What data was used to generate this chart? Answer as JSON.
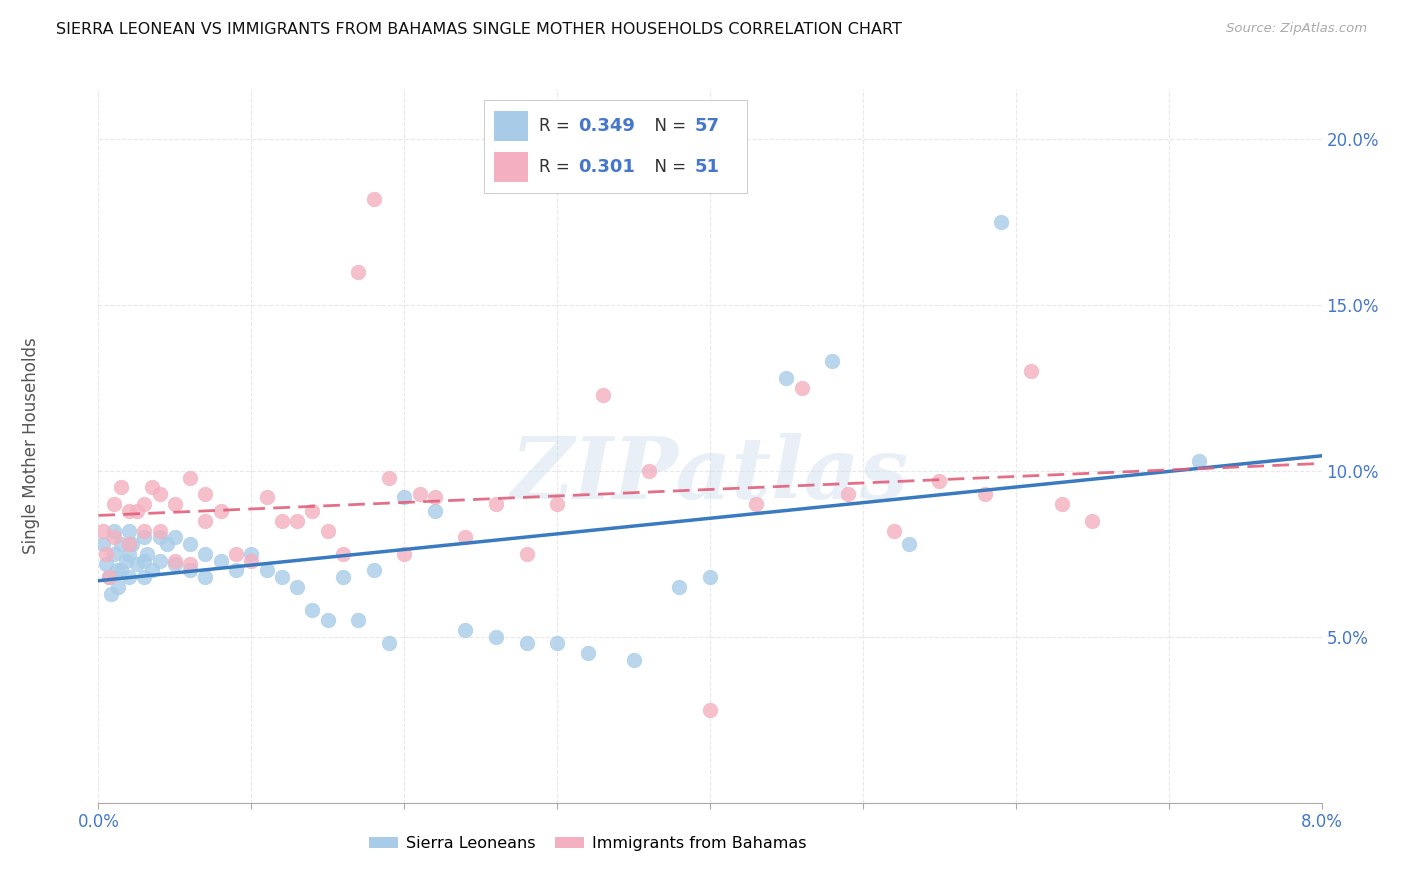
{
  "title": "SIERRA LEONEAN VS IMMIGRANTS FROM BAHAMAS SINGLE MOTHER HOUSEHOLDS CORRELATION CHART",
  "source": "Source: ZipAtlas.com",
  "ylabel": "Single Mother Households",
  "xlim": [
    0.0,
    0.08
  ],
  "ylim": [
    0.0,
    0.215
  ],
  "blue_R": 0.349,
  "blue_N": 57,
  "pink_R": 0.301,
  "pink_N": 51,
  "blue_color": "#a8cce8",
  "pink_color": "#f4b0c0",
  "blue_line_color": "#3a7bbf",
  "pink_line_color": "#e0607a",
  "watermark": "ZIPatlas",
  "legend_label_blue": "Sierra Leoneans",
  "legend_label_pink": "Immigrants from Bahamas",
  "blue_x": [
    0.0003,
    0.0005,
    0.0007,
    0.0008,
    0.001,
    0.001,
    0.0012,
    0.0013,
    0.0015,
    0.0015,
    0.0018,
    0.002,
    0.002,
    0.002,
    0.0022,
    0.0025,
    0.003,
    0.003,
    0.003,
    0.0032,
    0.0035,
    0.004,
    0.004,
    0.0045,
    0.005,
    0.005,
    0.006,
    0.006,
    0.007,
    0.007,
    0.008,
    0.009,
    0.01,
    0.011,
    0.012,
    0.013,
    0.014,
    0.015,
    0.016,
    0.017,
    0.018,
    0.019,
    0.02,
    0.022,
    0.024,
    0.026,
    0.028,
    0.03,
    0.032,
    0.035,
    0.038,
    0.04,
    0.045,
    0.048,
    0.053,
    0.059,
    0.072
  ],
  "blue_y": [
    0.078,
    0.072,
    0.068,
    0.063,
    0.082,
    0.075,
    0.07,
    0.065,
    0.078,
    0.07,
    0.073,
    0.082,
    0.075,
    0.068,
    0.078,
    0.072,
    0.08,
    0.073,
    0.068,
    0.075,
    0.07,
    0.08,
    0.073,
    0.078,
    0.08,
    0.072,
    0.078,
    0.07,
    0.075,
    0.068,
    0.073,
    0.07,
    0.075,
    0.07,
    0.068,
    0.065,
    0.058,
    0.055,
    0.068,
    0.055,
    0.07,
    0.048,
    0.092,
    0.088,
    0.052,
    0.05,
    0.048,
    0.048,
    0.045,
    0.043,
    0.065,
    0.068,
    0.128,
    0.133,
    0.078,
    0.175,
    0.103
  ],
  "pink_x": [
    0.0003,
    0.0005,
    0.0007,
    0.001,
    0.001,
    0.0015,
    0.002,
    0.002,
    0.0025,
    0.003,
    0.003,
    0.0035,
    0.004,
    0.004,
    0.005,
    0.005,
    0.006,
    0.006,
    0.007,
    0.007,
    0.008,
    0.009,
    0.01,
    0.011,
    0.012,
    0.013,
    0.014,
    0.015,
    0.016,
    0.017,
    0.018,
    0.019,
    0.02,
    0.021,
    0.022,
    0.024,
    0.026,
    0.028,
    0.03,
    0.033,
    0.036,
    0.04,
    0.043,
    0.046,
    0.049,
    0.052,
    0.055,
    0.058,
    0.061,
    0.063,
    0.065
  ],
  "pink_y": [
    0.082,
    0.075,
    0.068,
    0.09,
    0.08,
    0.095,
    0.088,
    0.078,
    0.088,
    0.09,
    0.082,
    0.095,
    0.093,
    0.082,
    0.09,
    0.073,
    0.098,
    0.072,
    0.093,
    0.085,
    0.088,
    0.075,
    0.073,
    0.092,
    0.085,
    0.085,
    0.088,
    0.082,
    0.075,
    0.16,
    0.182,
    0.098,
    0.075,
    0.093,
    0.092,
    0.08,
    0.09,
    0.075,
    0.09,
    0.123,
    0.1,
    0.028,
    0.09,
    0.125,
    0.093,
    0.082,
    0.097,
    0.093,
    0.13,
    0.09,
    0.085
  ]
}
